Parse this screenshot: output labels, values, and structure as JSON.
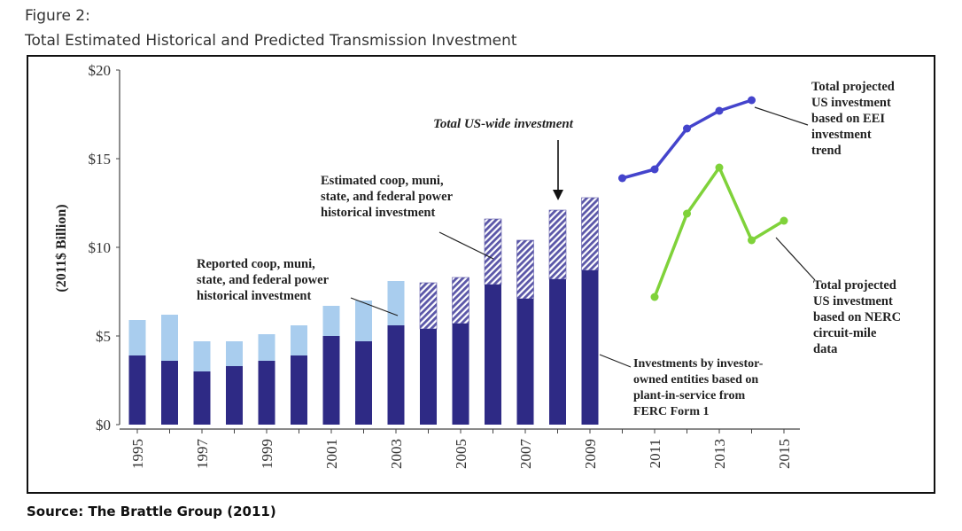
{
  "figure": {
    "label": "Figure 2:",
    "title": "Total Estimated Historical and Predicted Transmission Investment",
    "source": "Source: The Brattle Group (2011)"
  },
  "chart_data": {
    "type": "bar",
    "ylabel": "(2011$ Billion)",
    "ylim": [
      0,
      20
    ],
    "y_ticks": [
      "$0",
      "$5",
      "$10",
      "$15",
      "$20"
    ],
    "y_tick_values": [
      0,
      5,
      10,
      15,
      20
    ],
    "x_tick_labels": [
      "1995",
      "1997",
      "1999",
      "2001",
      "2003",
      "2005",
      "2007",
      "2009",
      "2011",
      "2013",
      "2015"
    ],
    "x_tick_values": [
      1995,
      1997,
      1999,
      2001,
      2003,
      2005,
      2007,
      2009,
      2011,
      2013,
      2015
    ],
    "grid": false,
    "colors": {
      "investor": "#2e2a85",
      "reported": "#a9cdee",
      "estimated": "#5b57a8",
      "eei": "#4444cc",
      "nerc": "#7fd23a"
    },
    "bars": [
      {
        "year": 1995,
        "investor": 3.9,
        "other": 2.0,
        "other_kind": "reported"
      },
      {
        "year": 1996,
        "investor": 3.6,
        "other": 2.6,
        "other_kind": "reported"
      },
      {
        "year": 1997,
        "investor": 3.0,
        "other": 1.7,
        "other_kind": "reported"
      },
      {
        "year": 1998,
        "investor": 3.3,
        "other": 1.4,
        "other_kind": "reported"
      },
      {
        "year": 1999,
        "investor": 3.6,
        "other": 1.5,
        "other_kind": "reported"
      },
      {
        "year": 2000,
        "investor": 3.9,
        "other": 1.7,
        "other_kind": "reported"
      },
      {
        "year": 2001,
        "investor": 5.0,
        "other": 1.7,
        "other_kind": "reported"
      },
      {
        "year": 2002,
        "investor": 4.7,
        "other": 2.3,
        "other_kind": "reported"
      },
      {
        "year": 2003,
        "investor": 5.6,
        "other": 2.5,
        "other_kind": "reported"
      },
      {
        "year": 2004,
        "investor": 5.4,
        "other": 2.6,
        "other_kind": "estimated"
      },
      {
        "year": 2005,
        "investor": 5.7,
        "other": 2.6,
        "other_kind": "estimated"
      },
      {
        "year": 2006,
        "investor": 7.9,
        "other": 3.7,
        "other_kind": "estimated"
      },
      {
        "year": 2007,
        "investor": 7.1,
        "other": 3.3,
        "other_kind": "estimated"
      },
      {
        "year": 2008,
        "investor": 8.2,
        "other": 3.9,
        "other_kind": "estimated"
      },
      {
        "year": 2009,
        "investor": 8.7,
        "other": 4.1,
        "other_kind": "estimated"
      }
    ],
    "series": [
      {
        "key": "eei",
        "x": [
          2010,
          2011,
          2012,
          2013,
          2014
        ],
        "values": [
          13.9,
          14.4,
          16.7,
          17.7,
          18.3
        ]
      },
      {
        "key": "nerc",
        "x": [
          2011,
          2012,
          2013,
          2014,
          2015
        ],
        "values": [
          7.2,
          11.9,
          14.5,
          10.4,
          11.5
        ]
      }
    ],
    "annotations": [
      {
        "key": "total",
        "lines": [
          "Total US-wide investment"
        ],
        "italic": true
      },
      {
        "key": "estimated",
        "lines": [
          "Estimated coop, muni,",
          "state, and federal power",
          "historical investment"
        ]
      },
      {
        "key": "reported",
        "lines": [
          "Reported coop, muni,",
          "state, and federal power",
          "historical investment"
        ]
      },
      {
        "key": "investor",
        "lines": [
          "Investments by investor-",
          "owned entities based on",
          "plant-in-service from",
          "FERC Form 1"
        ]
      },
      {
        "key": "eei",
        "lines": [
          "Total projected",
          "US investment",
          "based on EEI",
          "investment",
          "trend"
        ]
      },
      {
        "key": "nerc",
        "lines": [
          "Total projected",
          "US investment",
          "based on NERC",
          "circuit-mile",
          "data"
        ]
      }
    ]
  }
}
